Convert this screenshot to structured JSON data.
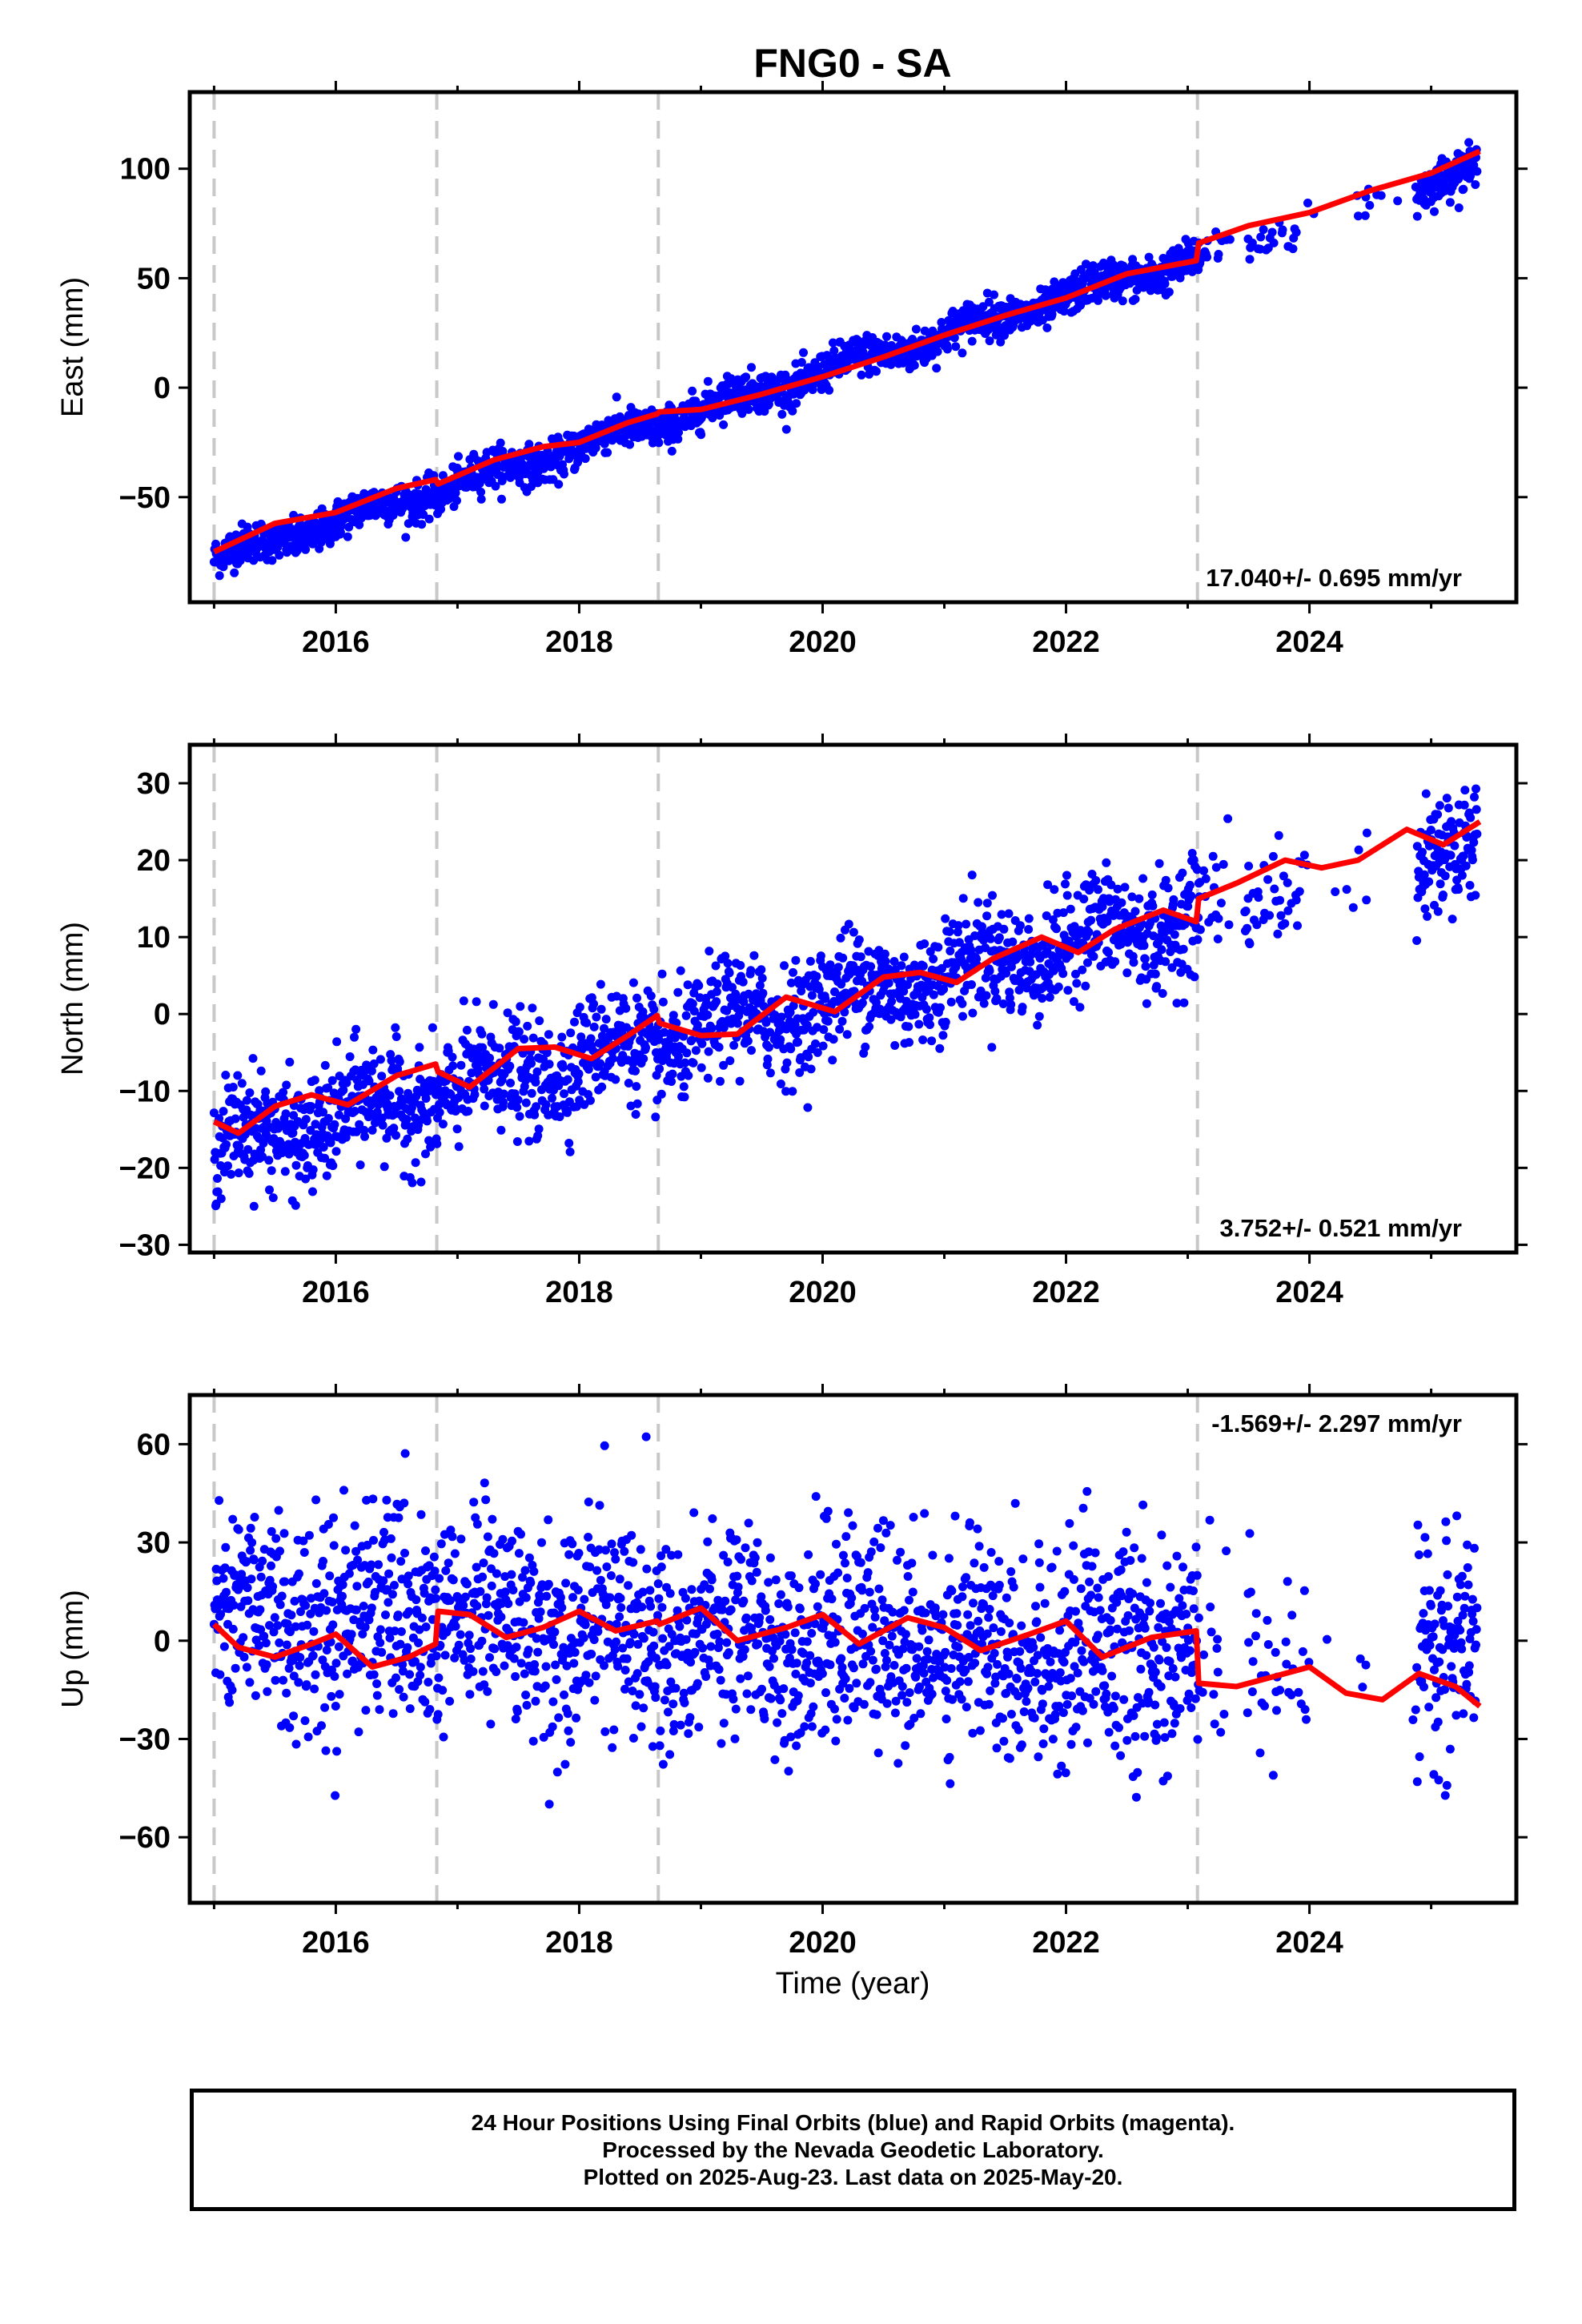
{
  "figure": {
    "title": "FNG0 - SA",
    "xlabel": "Time (year)"
  },
  "chart_data": [
    {
      "type": "scatter",
      "name": "east-panel",
      "ylabel": "East (mm)",
      "rate_label": "17.040+/- 0.695 mm/yr",
      "xlim": [
        2014.8,
        2025.7
      ],
      "ylim": [
        -98,
        135
      ],
      "xticks": [
        2016,
        2018,
        2020,
        2022,
        2024
      ],
      "yticks": [
        -50,
        0,
        50,
        100
      ],
      "yticklabels": [
        "−50",
        "0",
        "50",
        "100"
      ],
      "xticklabels": [
        "2016",
        "2018",
        "2020",
        "2022",
        "2024"
      ],
      "steps": [
        2015.0,
        2016.83,
        2018.65,
        2023.08
      ],
      "series": [
        {
          "type": "scatter",
          "color": "#0000ff",
          "model": {
            "rate": 17.04,
            "ref_year": 2020.0,
            "ref_value": 7,
            "seasonal": 3.0,
            "noise": 4.5
          }
        },
        {
          "type": "line",
          "color": "#ff0000",
          "x": [
            2015.0,
            2015.5,
            2016.0,
            2016.5,
            2016.82,
            2016.84,
            2017.3,
            2017.7,
            2018.0,
            2018.4,
            2018.64,
            2018.66,
            2019.0,
            2019.5,
            2020.0,
            2020.5,
            2021.0,
            2021.5,
            2022.0,
            2022.5,
            2023.07,
            2023.09,
            2023.5,
            2024.0,
            2024.5,
            2025.0,
            2025.4
          ],
          "y": [
            -75,
            -62,
            -57,
            -46,
            -42,
            -44,
            -33,
            -27,
            -25,
            -16,
            -12,
            -11,
            -10,
            -3,
            5,
            14,
            24,
            33,
            41,
            52,
            58,
            66,
            74,
            80,
            90,
            98,
            108
          ]
        }
      ]
    },
    {
      "type": "scatter",
      "name": "north-panel",
      "ylabel": "North (mm)",
      "rate_label": "3.752+/- 0.521 mm/yr",
      "xlim": [
        2014.8,
        2025.7
      ],
      "ylim": [
        -31,
        35
      ],
      "xticks": [
        2016,
        2018,
        2020,
        2022,
        2024
      ],
      "yticks": [
        -30,
        -20,
        -10,
        0,
        10,
        20,
        30
      ],
      "yticklabels": [
        "−30",
        "−20",
        "−10",
        "0",
        "10",
        "20",
        "30"
      ],
      "xticklabels": [
        "2016",
        "2018",
        "2020",
        "2022",
        "2024"
      ],
      "steps": [
        2015.0,
        2016.83,
        2018.65,
        2023.08
      ],
      "series": [
        {
          "type": "scatter",
          "color": "#0000ff",
          "model": {
            "rate": 3.75,
            "ref_year": 2020.0,
            "ref_value": 1.5,
            "seasonal": 1.8,
            "noise": 3.6
          }
        },
        {
          "type": "line",
          "color": "#ff0000",
          "x": [
            2015.0,
            2015.2,
            2015.5,
            2015.8,
            2016.1,
            2016.5,
            2016.82,
            2016.84,
            2017.1,
            2017.5,
            2017.8,
            2018.1,
            2018.4,
            2018.64,
            2018.66,
            2019.0,
            2019.3,
            2019.7,
            2020.1,
            2020.5,
            2020.8,
            2021.1,
            2021.4,
            2021.8,
            2022.1,
            2022.4,
            2022.8,
            2023.07,
            2023.09,
            2023.4,
            2023.8,
            2024.1,
            2024.4,
            2024.8,
            2025.1,
            2025.4
          ],
          "y": [
            -14,
            -15.5,
            -12,
            -10.5,
            -11.8,
            -8,
            -6.5,
            -7.5,
            -9.5,
            -4.5,
            -4.3,
            -5.8,
            -2.8,
            -0.2,
            -1.2,
            -2.8,
            -2.6,
            2.2,
            0.3,
            4.8,
            5.4,
            4.1,
            7.2,
            10,
            8,
            11,
            13.5,
            12,
            15,
            17,
            20,
            19,
            20,
            24,
            22,
            25
          ]
        }
      ]
    },
    {
      "type": "scatter",
      "name": "up-panel",
      "ylabel": "Up (mm)",
      "rate_label": "-1.569+/- 2.297 mm/yr",
      "xlim": [
        2014.8,
        2025.7
      ],
      "ylim": [
        -80,
        75
      ],
      "xticks": [
        2016,
        2018,
        2020,
        2022,
        2024
      ],
      "yticks": [
        -60,
        -30,
        0,
        30,
        60
      ],
      "yticklabels": [
        "−60",
        "−30",
        "0",
        "30",
        "60"
      ],
      "xticklabels": [
        "2016",
        "2018",
        "2020",
        "2022",
        "2024"
      ],
      "steps": [
        2015.0,
        2016.83,
        2018.65,
        2023.08
      ],
      "series": [
        {
          "type": "scatter",
          "color": "#0000ff",
          "model": {
            "rate": -1.57,
            "ref_year": 2020.0,
            "ref_value": 1,
            "seasonal": 5,
            "noise": 16
          }
        },
        {
          "type": "line",
          "color": "#ff0000",
          "x": [
            2015.0,
            2015.2,
            2015.5,
            2015.8,
            2016.0,
            2016.3,
            2016.6,
            2016.82,
            2016.84,
            2017.1,
            2017.4,
            2017.7,
            2018.0,
            2018.3,
            2018.64,
            2018.66,
            2019.0,
            2019.3,
            2019.7,
            2020.0,
            2020.3,
            2020.7,
            2021.0,
            2021.3,
            2021.7,
            2022.0,
            2022.3,
            2022.7,
            2023.07,
            2023.09,
            2023.4,
            2023.8,
            2024.0,
            2024.3,
            2024.6,
            2024.9,
            2025.2,
            2025.4
          ],
          "y": [
            5,
            -2,
            -5,
            -1,
            2,
            -8,
            -5,
            -1,
            9,
            8,
            1,
            4,
            9,
            3,
            6,
            5,
            10,
            0,
            4,
            8,
            -1,
            7,
            4,
            -3,
            2,
            6,
            -5,
            1,
            3,
            -13,
            -14,
            -10,
            -8,
            -16,
            -18,
            -10,
            -14,
            -20
          ]
        }
      ]
    }
  ],
  "footer": {
    "line1": "24 Hour Positions Using Final Orbits (blue) and Rapid Orbits (magenta).",
    "line2": "Processed by the Nevada Geodetic Laboratory.",
    "line3": "Plotted on 2025-Aug-23. Last data on 2025-May-20."
  }
}
